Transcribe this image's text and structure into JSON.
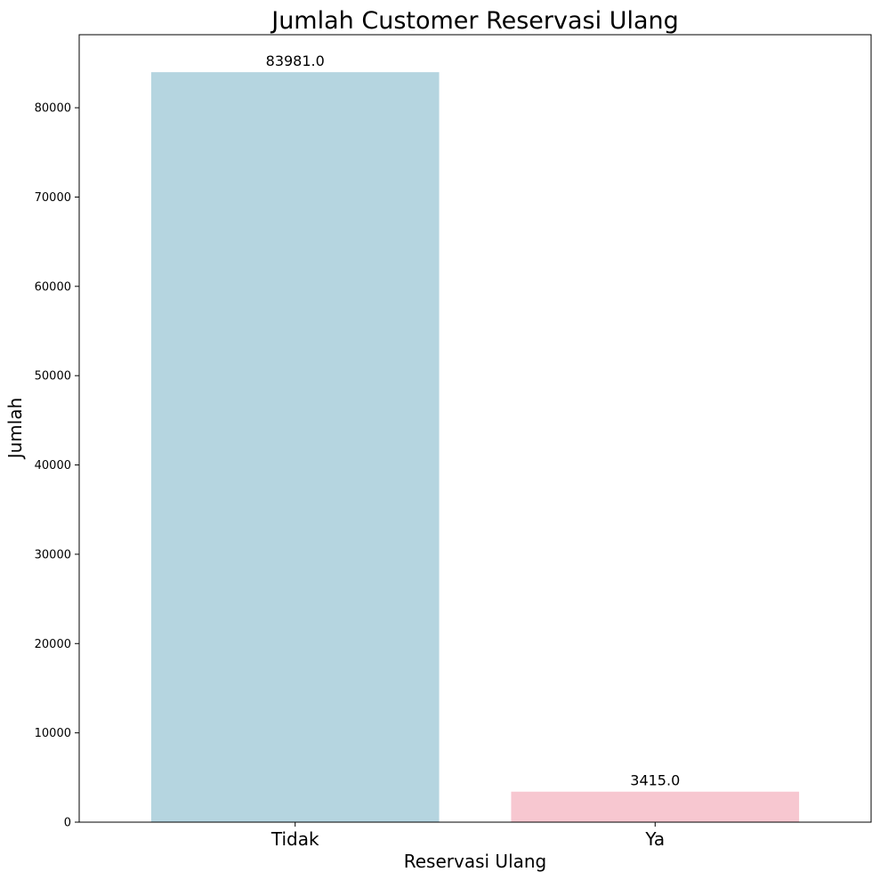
{
  "chart_data": {
    "type": "bar",
    "title": "Jumlah Customer Reservasi Ulang",
    "xlabel": "Reservasi Ulang",
    "ylabel": "Jumlah",
    "categories": [
      "Tidak",
      "Ya"
    ],
    "values": [
      83981,
      3415
    ],
    "value_labels": [
      "83981.0",
      "3415.0"
    ],
    "colors": [
      "#b5d5e0",
      "#f7c7d0"
    ],
    "ylim": [
      0,
      88179
    ],
    "yticks": [
      0,
      10000,
      20000,
      30000,
      40000,
      50000,
      60000,
      70000,
      80000
    ],
    "grid": false,
    "legend": "none"
  }
}
